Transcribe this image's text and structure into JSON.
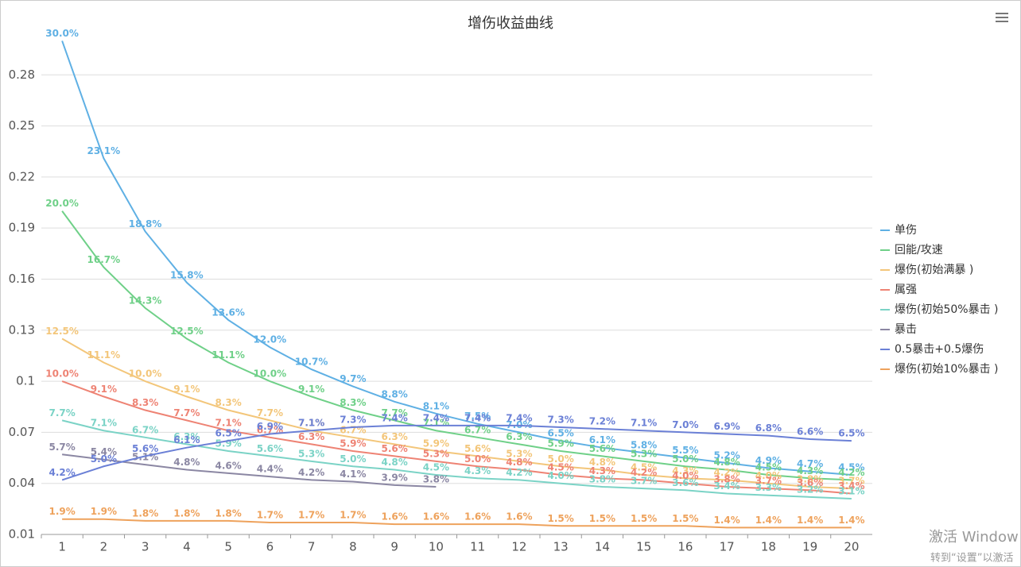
{
  "chart_data": {
    "type": "line",
    "title": "增伤收益曲线",
    "categories": [
      "1",
      "2",
      "3",
      "4",
      "5",
      "6",
      "7",
      "8",
      "9",
      "10",
      "11",
      "12",
      "13",
      "14",
      "15",
      "16",
      "17",
      "18",
      "19",
      "20"
    ],
    "ylim": [
      0.01,
      0.3
    ],
    "yticks": [
      0.01,
      0.04,
      0.07,
      0.1,
      0.13,
      0.16,
      0.19,
      0.22,
      0.25,
      0.28
    ],
    "grid": true,
    "legend": "right",
    "series": [
      {
        "name": "单伤",
        "color": "#5fb0e4",
        "values": [
          0.3,
          0.231,
          0.188,
          0.158,
          0.136,
          0.12,
          0.107,
          0.097,
          0.088,
          0.081,
          0.075,
          0.07,
          0.065,
          0.061,
          0.058,
          0.055,
          0.052,
          0.049,
          0.047,
          0.045
        ],
        "value_labels": [
          "30.0%",
          "23.1%",
          "18.8%",
          "15.8%",
          "13.6%",
          "12.0%",
          "10.7%",
          "9.7%",
          "8.8%",
          "8.1%",
          "7.5%",
          "7.0%",
          "6.5%",
          "6.1%",
          "5.8%",
          "5.5%",
          "5.2%",
          "4.9%",
          "4.7%",
          "4.5%"
        ]
      },
      {
        "name": "回能/攻速",
        "color": "#6fd088",
        "values": [
          0.2,
          0.167,
          0.143,
          0.125,
          0.111,
          0.1,
          0.091,
          0.083,
          0.077,
          0.071,
          0.067,
          0.063,
          0.059,
          0.056,
          0.053,
          0.05,
          0.048,
          0.045,
          0.043,
          0.042
        ],
        "value_labels": [
          "20.0%",
          "16.7%",
          "14.3%",
          "12.5%",
          "11.1%",
          "10.0%",
          "9.1%",
          "8.3%",
          "7.7%",
          "7.1%",
          "6.7%",
          "6.3%",
          "5.9%",
          "5.6%",
          "5.3%",
          "5.0%",
          "4.8%",
          "4.5%",
          "4.3%",
          "4.2%"
        ]
      },
      {
        "name": "爆伤(初始满暴 )",
        "color": "#f3c67a",
        "values": [
          0.125,
          0.111,
          0.1,
          0.091,
          0.083,
          0.077,
          0.071,
          0.067,
          0.063,
          0.059,
          0.056,
          0.053,
          0.05,
          0.048,
          0.045,
          0.043,
          0.042,
          0.04,
          0.038,
          0.037
        ],
        "value_labels": [
          "12.5%",
          "11.1%",
          "10.0%",
          "9.1%",
          "8.3%",
          "7.7%",
          "7.1%",
          "6.7%",
          "6.3%",
          "5.9%",
          "5.6%",
          "5.3%",
          "5.0%",
          "4.8%",
          "4.5%",
          "4.3%",
          "4.2%",
          "4.0%",
          "3.8%",
          "3.7%"
        ]
      },
      {
        "name": "属强",
        "color": "#ee8374",
        "values": [
          0.1,
          0.091,
          0.083,
          0.077,
          0.071,
          0.067,
          0.063,
          0.059,
          0.056,
          0.053,
          0.05,
          0.048,
          0.045,
          0.043,
          0.042,
          0.04,
          0.038,
          0.037,
          0.036,
          0.034
        ],
        "value_labels": [
          "10.0%",
          "9.1%",
          "8.3%",
          "7.7%",
          "7.1%",
          "6.7%",
          "6.3%",
          "5.9%",
          "5.6%",
          "5.3%",
          "5.0%",
          "4.8%",
          "4.5%",
          "4.3%",
          "4.2%",
          "4.0%",
          "3.8%",
          "3.7%",
          "3.6%",
          "3.4%"
        ]
      },
      {
        "name": "爆伤(初始50%暴击 )",
        "color": "#7bd3c6",
        "values": [
          0.077,
          0.071,
          0.067,
          0.063,
          0.059,
          0.056,
          0.053,
          0.05,
          0.048,
          0.045,
          0.043,
          0.042,
          0.04,
          0.038,
          0.037,
          0.036,
          0.034,
          0.033,
          0.032,
          0.031
        ],
        "value_labels": [
          "7.7%",
          "7.1%",
          "6.7%",
          "6.3%",
          "5.9%",
          "5.6%",
          "5.3%",
          "5.0%",
          "4.8%",
          "4.5%",
          "4.3%",
          "4.2%",
          "4.0%",
          "3.8%",
          "3.7%",
          "3.6%",
          "3.4%",
          "3.3%",
          "3.2%",
          "3.1%"
        ]
      },
      {
        "name": "暴击",
        "color": "#8b87a3",
        "values": [
          0.057,
          0.054,
          0.051,
          0.048,
          0.046,
          0.044,
          0.042,
          0.041,
          0.039,
          0.038,
          null,
          null,
          null,
          null,
          null,
          null,
          null,
          null,
          null,
          null
        ],
        "value_labels": [
          "5.7%",
          "5.4%",
          "5.1%",
          "4.8%",
          "4.6%",
          "4.4%",
          "4.2%",
          "4.1%",
          "3.9%",
          "3.8%",
          null,
          null,
          null,
          null,
          null,
          null,
          null,
          null,
          null,
          null
        ]
      },
      {
        "name": "0.5暴击+0.5爆伤",
        "color": "#6b80d6",
        "values": [
          0.042,
          0.05,
          0.056,
          0.061,
          0.065,
          0.069,
          0.071,
          0.073,
          0.074,
          0.074,
          0.074,
          0.074,
          0.073,
          0.072,
          0.071,
          0.07,
          0.069,
          0.068,
          0.066,
          0.065
        ],
        "value_labels": [
          "4.2%",
          "5.0%",
          "5.6%",
          "6.1%",
          "6.5%",
          "6.9%",
          "7.1%",
          "7.3%",
          "7.4%",
          "7.4%",
          "7.4%",
          "7.4%",
          "7.3%",
          "7.2%",
          "7.1%",
          "7.0%",
          "6.9%",
          "6.8%",
          "6.6%",
          "6.5%"
        ]
      },
      {
        "name": "爆伤(初始10%暴击 )",
        "color": "#eea25c",
        "values": [
          0.019,
          0.019,
          0.018,
          0.018,
          0.018,
          0.017,
          0.017,
          0.017,
          0.016,
          0.016,
          0.016,
          0.016,
          0.015,
          0.015,
          0.015,
          0.015,
          0.014,
          0.014,
          0.014,
          0.014
        ],
        "value_labels": [
          "1.9%",
          "1.9%",
          "1.8%",
          "1.8%",
          "1.8%",
          "1.7%",
          "1.7%",
          "1.7%",
          "1.6%",
          "1.6%",
          "1.6%",
          "1.6%",
          "1.5%",
          "1.5%",
          "1.5%",
          "1.5%",
          "1.4%",
          "1.4%",
          "1.4%",
          "1.4%"
        ]
      }
    ]
  },
  "watermark": {
    "line1": "激活 Window",
    "line2": "转到“设置”以激活"
  }
}
